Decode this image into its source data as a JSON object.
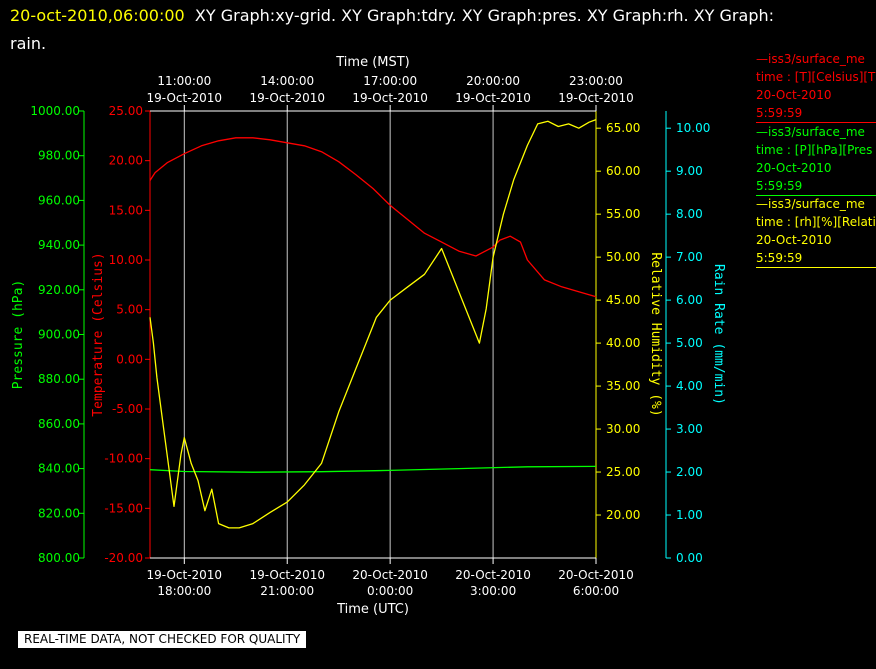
{
  "header": {
    "timestamp": "20-oct-2010,06:00:00",
    "title_rest": "XY Graph:xy-grid.  XY Graph:tdry.  XY Graph:pres.  XY Graph:rh.  XY Graph:",
    "title_wrap": "rain."
  },
  "footer": {
    "disclaimer": "REAL-TIME DATA, NOT CHECKED FOR QUALITY"
  },
  "legend": [
    {
      "line": "—iss3/surface_me",
      "field": "time : [T][Celsius][T",
      "date": "20-Oct-2010",
      "time": "5:59:59",
      "color": "#ff0000"
    },
    {
      "line": "—iss3/surface_me",
      "field": "time : [P][hPa][Pres",
      "date": "20-Oct-2010",
      "time": "5:59:59",
      "color": "#00ff00"
    },
    {
      "line": "—iss3/surface_me",
      "field": "time : [rh][%][Relati",
      "date": "20-Oct-2010",
      "time": "5:59:59",
      "color": "#ffff00"
    }
  ],
  "chart_data": {
    "type": "line",
    "x_bottom": {
      "label": "Time (UTC)",
      "range": [
        "19-Oct-2010 17:00:00",
        "20-Oct-2010 06:00:00"
      ],
      "ticks": [
        {
          "date": "19-Oct-2010",
          "time": "18:00:00"
        },
        {
          "date": "19-Oct-2010",
          "time": "21:00:00"
        },
        {
          "date": "20-Oct-2010",
          "time": "0:00:00"
        },
        {
          "date": "20-Oct-2010",
          "time": "3:00:00"
        },
        {
          "date": "20-Oct-2010",
          "time": "6:00:00"
        }
      ]
    },
    "x_top": {
      "label": "Time (MST)",
      "ticks": [
        {
          "time": "11:00:00",
          "date": "19-Oct-2010"
        },
        {
          "time": "14:00:00",
          "date": "19-Oct-2010"
        },
        {
          "time": "17:00:00",
          "date": "19-Oct-2010"
        },
        {
          "time": "20:00:00",
          "date": "19-Oct-2010"
        },
        {
          "time": "23:00:00",
          "date": "19-Oct-2010"
        }
      ]
    },
    "y_axes": [
      {
        "id": "pres",
        "label": "Pressure (hPa)",
        "color": "#00ff00",
        "range": [
          800,
          1000
        ],
        "ticks": [
          "800.00",
          "820.00",
          "840.00",
          "860.00",
          "880.00",
          "900.00",
          "920.00",
          "940.00",
          "960.00",
          "980.00",
          "1000.00"
        ]
      },
      {
        "id": "temp",
        "label": "Temperature (Celsius)",
        "color": "#ff0000",
        "range": [
          -20,
          25
        ],
        "ticks": [
          "-20.00",
          "-15.00",
          "-10.00",
          "-5.00",
          "0.00",
          "5.00",
          "10.00",
          "15.00",
          "20.00",
          "25.00"
        ]
      },
      {
        "id": "rh",
        "label": "Relative Humidity (%)",
        "color": "#ffff00",
        "range": [
          15,
          67
        ],
        "ticks": [
          "20.00",
          "25.00",
          "30.00",
          "35.00",
          "40.00",
          "45.00",
          "50.00",
          "55.00",
          "60.00",
          "65.00"
        ]
      },
      {
        "id": "rain",
        "label": "Rain Rate (mm/min)",
        "color": "#00ffff",
        "range": [
          0,
          10.4
        ],
        "ticks": [
          "0.00",
          "1.00",
          "2.00",
          "3.00",
          "4.00",
          "5.00",
          "6.00",
          "7.00",
          "8.00",
          "9.00",
          "10.00"
        ]
      }
    ],
    "grid": true,
    "series": [
      {
        "axis": "temp",
        "color": "#ff0000",
        "x": [
          -1,
          -0.85,
          -0.5,
          0,
          0.5,
          1,
          1.5,
          2,
          2.5,
          3,
          3.5,
          4,
          4.5,
          5,
          5.5,
          6,
          6.5,
          7,
          7.5,
          8,
          8.5,
          9,
          9.2,
          9.5,
          9.8,
          10,
          10.5,
          11,
          11.5,
          12
        ],
        "y": [
          18,
          18.8,
          19.8,
          20.7,
          21.5,
          22,
          22.3,
          22.3,
          22.1,
          21.8,
          21.5,
          20.9,
          19.9,
          18.6,
          17.2,
          15.5,
          14.1,
          12.7,
          11.8,
          10.9,
          10.4,
          11.3,
          12.0,
          12.4,
          11.8,
          10.0,
          8.0,
          7.3,
          6.8,
          6.3
        ]
      },
      {
        "axis": "pres",
        "color": "#00ff00",
        "x": [
          -1,
          0,
          2,
          4,
          6,
          8,
          10,
          12
        ],
        "y": [
          839.5,
          838.7,
          838.4,
          838.6,
          839.2,
          840.0,
          840.8,
          841.0
        ]
      },
      {
        "axis": "rh",
        "color": "#ffff00",
        "x": [
          -1,
          -0.9,
          -0.8,
          -0.6,
          -0.3,
          -0.1,
          0.0,
          0.2,
          0.4,
          0.6,
          0.8,
          1.0,
          1.3,
          1.6,
          2.0,
          2.5,
          3.0,
          3.5,
          4.0,
          4.5,
          5.0,
          5.3,
          5.6,
          6.0,
          6.5,
          7.0,
          7.5,
          7.8,
          8.1,
          8.4,
          8.6,
          8.8,
          9.0,
          9.3,
          9.6,
          10.0,
          10.3,
          10.6,
          10.9,
          11.2,
          11.5,
          11.8,
          12.0
        ],
        "y": [
          43,
          40,
          36,
          30,
          21,
          27,
          29,
          26,
          24,
          20.5,
          23,
          19,
          18.5,
          18.5,
          19,
          20.3,
          21.5,
          23.5,
          26,
          32,
          37,
          40,
          43,
          45,
          46.5,
          48,
          51,
          48,
          45,
          42,
          40,
          44,
          50,
          55,
          59,
          63,
          65.5,
          65.8,
          65.2,
          65.5,
          65,
          65.7,
          66
        ]
      }
    ]
  }
}
